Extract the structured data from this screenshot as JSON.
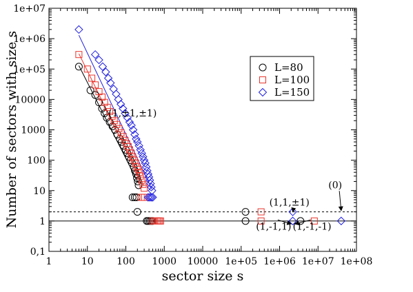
{
  "chart_data": {
    "type": "scatter",
    "title": "",
    "xlabel": "sector size s",
    "ylabel": "Number of sectors with size s",
    "xscale": "log",
    "yscale": "log",
    "xlim": [
      1,
      100000000
    ],
    "ylim": [
      0.1,
      10000000
    ],
    "x_ticks": [
      {
        "value": 1,
        "label": "1"
      },
      {
        "value": 10,
        "label": "10"
      },
      {
        "value": 100,
        "label": "100"
      },
      {
        "value": 1000,
        "label": "1000"
      },
      {
        "value": 10000,
        "label": "10000"
      },
      {
        "value": 100000,
        "label": "1e+05"
      },
      {
        "value": 1000000,
        "label": "1e+06"
      },
      {
        "value": 10000000,
        "label": "1e+07"
      },
      {
        "value": 100000000,
        "label": "1e+08"
      }
    ],
    "y_ticks": [
      {
        "value": 0.1,
        "label": "0,1"
      },
      {
        "value": 1,
        "label": "1"
      },
      {
        "value": 10,
        "label": "10"
      },
      {
        "value": 100,
        "label": "100"
      },
      {
        "value": 1000,
        "label": "1000"
      },
      {
        "value": 10000,
        "label": "10000"
      },
      {
        "value": 100000,
        "label": "1e+05"
      },
      {
        "value": 1000000,
        "label": "1e+06"
      },
      {
        "value": 10000000,
        "label": "1e+07"
      }
    ],
    "grid": false,
    "legend_position": "top-right",
    "series": [
      {
        "name": "L=80",
        "marker": "circle",
        "color": "#000000",
        "points": [
          [
            6,
            120000
          ],
          [
            12,
            20000
          ],
          [
            16,
            14000
          ],
          [
            20,
            8000
          ],
          [
            24,
            5000
          ],
          [
            28,
            3500
          ],
          [
            32,
            2500
          ],
          [
            38,
            1800
          ],
          [
            45,
            1300
          ],
          [
            52,
            1000
          ],
          [
            60,
            700
          ],
          [
            70,
            500
          ],
          [
            78,
            400
          ],
          [
            88,
            300
          ],
          [
            100,
            220
          ],
          [
            110,
            170
          ],
          [
            120,
            130
          ],
          [
            132,
            100
          ],
          [
            145,
            80
          ],
          [
            160,
            60
          ],
          [
            172,
            45
          ],
          [
            185,
            35
          ],
          [
            195,
            26
          ],
          [
            205,
            20
          ],
          [
            215,
            15
          ],
          [
            150,
            6
          ],
          [
            170,
            6
          ],
          [
            190,
            6
          ],
          [
            200,
            2
          ],
          [
            350,
            1
          ],
          [
            380,
            1
          ],
          [
            420,
            1
          ],
          [
            460,
            1
          ],
          [
            500,
            1
          ],
          [
            130000,
            1
          ],
          [
            130000,
            2
          ],
          [
            3500000,
            1
          ]
        ]
      },
      {
        "name": "L=100",
        "marker": "square",
        "color": "#e8342c",
        "points": [
          [
            6,
            300000
          ],
          [
            10,
            100000
          ],
          [
            13,
            50000
          ],
          [
            16,
            30000
          ],
          [
            20,
            18000
          ],
          [
            24,
            12000
          ],
          [
            28,
            8000
          ],
          [
            33,
            5500
          ],
          [
            38,
            4000
          ],
          [
            44,
            2800
          ],
          [
            50,
            2000
          ],
          [
            58,
            1500
          ],
          [
            66,
            1100
          ],
          [
            75,
            800
          ],
          [
            85,
            600
          ],
          [
            95,
            450
          ],
          [
            105,
            350
          ],
          [
            115,
            280
          ],
          [
            125,
            220
          ],
          [
            138,
            170
          ],
          [
            150,
            130
          ],
          [
            165,
            100
          ],
          [
            180,
            80
          ],
          [
            195,
            60
          ],
          [
            210,
            50
          ],
          [
            225,
            40
          ],
          [
            240,
            30
          ],
          [
            260,
            22
          ],
          [
            280,
            16
          ],
          [
            300,
            12
          ],
          [
            250,
            6
          ],
          [
            280,
            6
          ],
          [
            310,
            6
          ],
          [
            500,
            1
          ],
          [
            550,
            1
          ],
          [
            600,
            1
          ],
          [
            650,
            1
          ],
          [
            700,
            1
          ],
          [
            750,
            1
          ],
          [
            800,
            1
          ],
          [
            330000,
            1
          ],
          [
            330000,
            2
          ],
          [
            8000000,
            1
          ]
        ]
      },
      {
        "name": "L=150",
        "marker": "diamond",
        "color": "#1f1fe0",
        "points": [
          [
            6,
            2000000
          ],
          [
            16,
            300000
          ],
          [
            20,
            200000
          ],
          [
            25,
            120000
          ],
          [
            30,
            80000
          ],
          [
            35,
            50000
          ],
          [
            40,
            35000
          ],
          [
            48,
            22000
          ],
          [
            56,
            15000
          ],
          [
            64,
            10000
          ],
          [
            74,
            7000
          ],
          [
            84,
            5000
          ],
          [
            96,
            3500
          ],
          [
            110,
            2500
          ],
          [
            125,
            1800
          ],
          [
            140,
            1400
          ],
          [
            155,
            1000
          ],
          [
            170,
            700
          ],
          [
            185,
            500
          ],
          [
            200,
            400
          ],
          [
            220,
            300
          ],
          [
            240,
            220
          ],
          [
            260,
            170
          ],
          [
            280,
            130
          ],
          [
            300,
            100
          ],
          [
            320,
            80
          ],
          [
            340,
            60
          ],
          [
            360,
            45
          ],
          [
            380,
            35
          ],
          [
            400,
            28
          ],
          [
            420,
            22
          ],
          [
            440,
            17
          ],
          [
            460,
            13
          ],
          [
            480,
            10
          ],
          [
            380,
            6
          ],
          [
            420,
            6
          ],
          [
            460,
            6
          ],
          [
            500,
            6
          ],
          [
            2200000,
            2
          ],
          [
            2200000,
            1
          ],
          [
            40000000,
            1
          ]
        ]
      }
    ],
    "fit_lines": [
      {
        "series": "L=80",
        "color": "#000000",
        "from": [
          6,
          130000
        ],
        "to": [
          210,
          18
        ]
      },
      {
        "series": "L=100",
        "color": "#e8342c",
        "from": [
          6,
          320000
        ],
        "to": [
          300,
          14
        ]
      },
      {
        "series": "L=150",
        "color": "#1f1fe0",
        "from": [
          6,
          1300000
        ],
        "to": [
          480,
          11
        ]
      }
    ],
    "reference_lines": [
      {
        "y": 1,
        "style": "solid"
      },
      {
        "y": 2,
        "style": "dashed"
      }
    ],
    "annotations": [
      {
        "text": "(1,±1,±1)",
        "x": 150,
        "y": 2800
      },
      {
        "text": "(1,1,±1)",
        "x": 1800000,
        "y": 3.2,
        "arrow_to": [
          2200000,
          2
        ]
      },
      {
        "text": "(0)",
        "x": 28000000,
        "y": 12,
        "arrow_to": [
          40000000,
          2.2
        ]
      },
      {
        "text": "(1,-1,1)",
        "x": 700000,
        "y": 0.52,
        "arrow_to": [
          2000000,
          0.8
        ]
      },
      {
        "text": "(1,-1,-1)",
        "x": 7000000,
        "y": 0.52,
        "arrow_to": [
          2500000,
          0.8
        ]
      }
    ]
  }
}
